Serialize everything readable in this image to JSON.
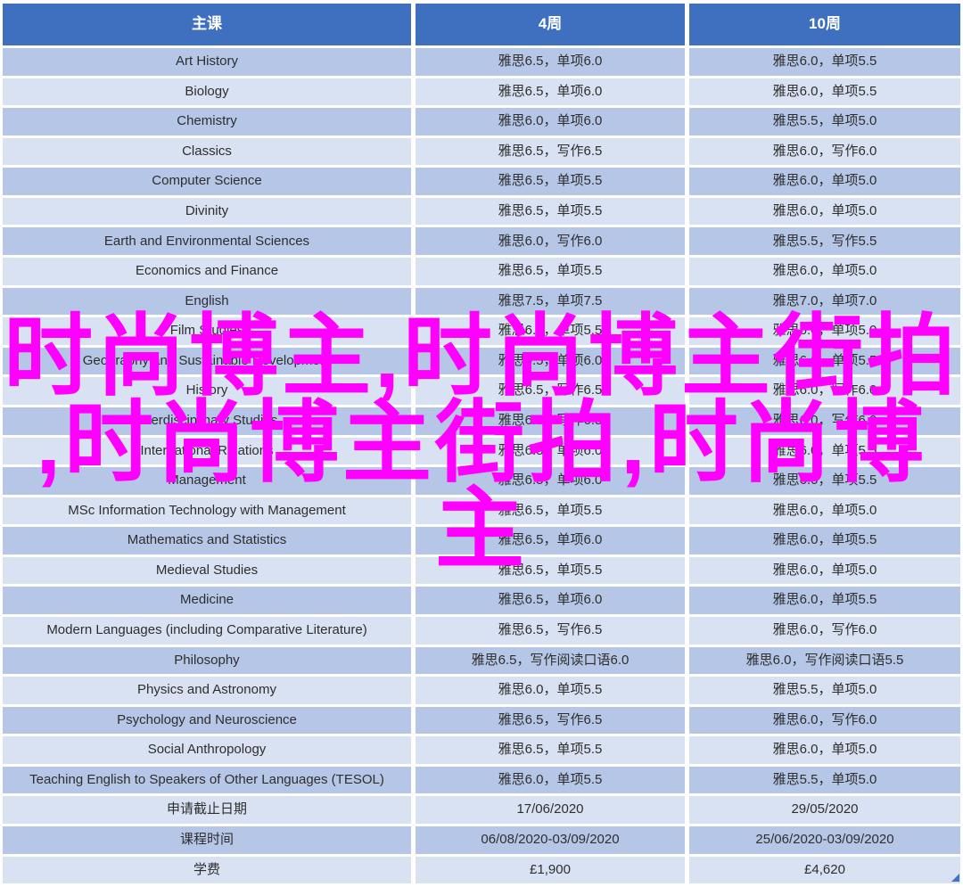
{
  "watermark": {
    "full_text": "时尚博主,时尚博主街拍,时尚博主街拍,时尚博主",
    "line1": "时尚博主,时尚博主街拍",
    "line2": ",时尚博主街拍,时尚博",
    "line3": "主"
  },
  "table": {
    "headers": [
      "主课",
      "4周",
      "10周"
    ],
    "rows": [
      {
        "course": "Art History",
        "week4": "雅思6.5，单项6.0",
        "week10": "雅思6.0，单项5.5"
      },
      {
        "course": "Biology",
        "week4": "雅思6.5，单项6.0",
        "week10": "雅思6.0，单项5.5"
      },
      {
        "course": "Chemistry",
        "week4": "雅思6.0，单项6.0",
        "week10": "雅思5.5，单项5.0"
      },
      {
        "course": "Classics",
        "week4": "雅思6.5，写作6.5",
        "week10": "雅思6.0，写作6.0"
      },
      {
        "course": "Computer Science",
        "week4": "雅思6.5，单项5.5",
        "week10": "雅思6.0，单项5.0"
      },
      {
        "course": "Divinity",
        "week4": "雅思6.5，单项5.5",
        "week10": "雅思6.0，单项5.0"
      },
      {
        "course": "Earth and Environmental Sciences",
        "week4": "雅思6.0，写作6.0",
        "week10": "雅思5.5，写作5.5"
      },
      {
        "course": "Economics and Finance",
        "week4": "雅思6.5，单项5.5",
        "week10": "雅思6.0，单项5.0"
      },
      {
        "course": "English",
        "week4": "雅思7.5，单项7.5",
        "week10": "雅思7.0，单项7.0"
      },
      {
        "course": "Film Studies",
        "week4": "雅思6.5，单项5.5",
        "week10": "雅思6.0，单项5.0"
      },
      {
        "course": "Geography and Sustainable Development",
        "week4": "雅思6.5，单项6.0",
        "week10": "雅思6.0，单项5.5"
      },
      {
        "course": "History",
        "week4": "雅思6.5，写作6.5",
        "week10": "雅思6.0，写作6.0"
      },
      {
        "course": "Interdisciplinary Studies",
        "week4": "雅思6.5，写作6.5",
        "week10": "雅思6.0，写作6.0"
      },
      {
        "course": "International Relations",
        "week4": "雅思6.5，单项6.0",
        "week10": "雅思6.0，单项5.5"
      },
      {
        "course": "Management",
        "week4": "雅思6.5，单项6.0",
        "week10": "雅思6.0，单项5.5"
      },
      {
        "course": "MSc Information Technology with Management",
        "week4": "雅思6.5，单项5.5",
        "week10": "雅思6.0，单项5.0"
      },
      {
        "course": "Mathematics and Statistics",
        "week4": "雅思6.5，单项6.0",
        "week10": "雅思6.0，单项5.5"
      },
      {
        "course": "Medieval Studies",
        "week4": "雅思6.5，单项5.5",
        "week10": "雅思6.0，单项5.0"
      },
      {
        "course": "Medicine",
        "week4": "雅思6.5，单项6.0",
        "week10": "雅思6.0，单项5.5"
      },
      {
        "course": "Modern Languages (including Comparative Literature)",
        "week4": "雅思6.5，写作6.5",
        "week10": "雅思6.0，写作6.0"
      },
      {
        "course": "Philosophy",
        "week4": "雅思6.5，写作阅读口语6.0",
        "week10": "雅思6.0，写作阅读口语5.5"
      },
      {
        "course": "Physics and Astronomy",
        "week4": "雅思6.0，单项5.5",
        "week10": "雅思5.5，单项5.0"
      },
      {
        "course": "Psychology and Neuroscience",
        "week4": "雅思6.5，写作6.5",
        "week10": "雅思6.0，写作6.0"
      },
      {
        "course": "Social Anthropology",
        "week4": "雅思6.5，单项5.5",
        "week10": "雅思6.0，单项5.0"
      },
      {
        "course": "Teaching English to Speakers of Other Languages (TESOL)",
        "week4": "雅思6.0，单项5.5",
        "week10": "雅思5.5，单项5.0"
      },
      {
        "course": "申请截止日期",
        "week4": "17/06/2020",
        "week10": "29/05/2020"
      },
      {
        "course": "课程时间",
        "week4": "06/08/2020-03/09/2020",
        "week10": "25/06/2020-03/09/2020"
      },
      {
        "course": "学费",
        "week4": "£1,900",
        "week10": "£4,620"
      }
    ]
  },
  "colors": {
    "header_bg": "#3F6FBF",
    "header_text": "#FFFFFF",
    "row_dark": "#B5C6E7",
    "row_light": "#D9E2F2",
    "cell_text": "#2E2E2E",
    "watermark": "#FF00FF",
    "handle": "#4472C4"
  }
}
